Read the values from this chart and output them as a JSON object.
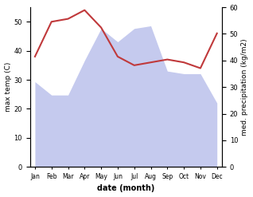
{
  "months": [
    "Jan",
    "Feb",
    "Mar",
    "Apr",
    "May",
    "Jun",
    "Jul",
    "Aug",
    "Sep",
    "Oct",
    "Nov",
    "Dec"
  ],
  "temperature": [
    38,
    50,
    51,
    54,
    48,
    38,
    35,
    36,
    37,
    36,
    34,
    46
  ],
  "rainfall": [
    32,
    27,
    27,
    40,
    52,
    47,
    52,
    53,
    36,
    35,
    35,
    24
  ],
  "temp_color": "#c0393b",
  "rain_fill_color": "#c5caee",
  "temp_ylim": [
    0,
    55
  ],
  "rain_ylim": [
    0,
    60
  ],
  "temp_yticks": [
    0,
    10,
    20,
    30,
    40,
    50
  ],
  "rain_yticks": [
    0,
    10,
    20,
    30,
    40,
    50,
    60
  ],
  "xlabel": "date (month)",
  "ylabel_left": "max temp (C)",
  "ylabel_right": "med. precipitation (kg/m2)"
}
